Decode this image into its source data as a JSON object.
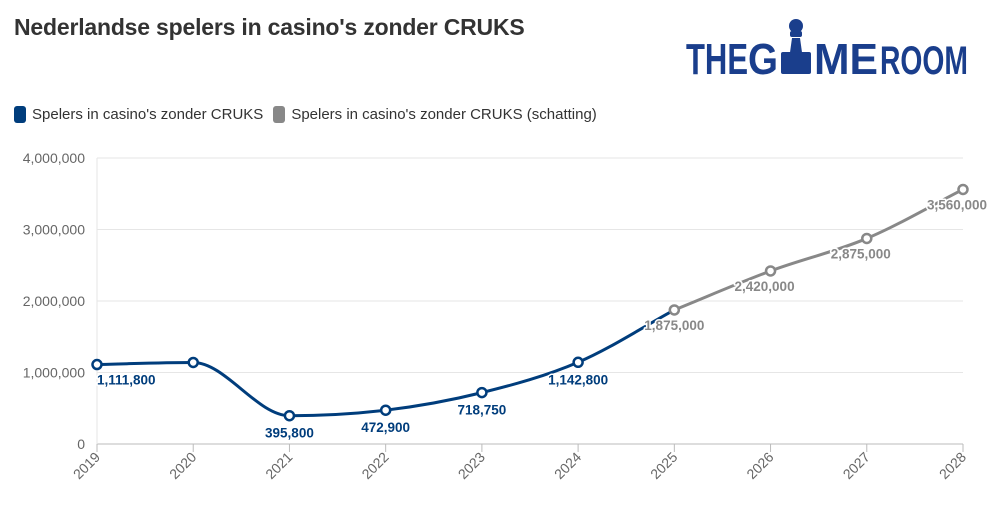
{
  "title": "Nederlandse spelers in casino's zonder CRUKS",
  "logo": {
    "part1": "THE",
    "part2": "G",
    "part3": "ME",
    "part4": "ROOM"
  },
  "colors": {
    "actual": "#003d7c",
    "estimate": "#888888",
    "grid": "#e6e6e6",
    "axis": "#bbbbbb"
  },
  "chart_data": {
    "type": "line",
    "title": "Nederlandse spelers in casino's zonder CRUKS",
    "x": [
      "2019",
      "2020",
      "2021",
      "2022",
      "2023",
      "2024",
      "2025",
      "2026",
      "2027",
      "2028"
    ],
    "ylim": [
      0,
      4000000
    ],
    "yticks": [
      0,
      1000000,
      2000000,
      3000000,
      4000000
    ],
    "ytick_labels": [
      "0",
      "1,000,000",
      "2,000,000",
      "3,000,000",
      "4,000,000"
    ],
    "grid": true,
    "legend_position": "top-left",
    "series": [
      {
        "name": "Spelers in casino's zonder CRUKS",
        "color": "#003d7c",
        "x": [
          "2019",
          "2020",
          "2021",
          "2022",
          "2023",
          "2024",
          "2025"
        ],
        "values": [
          1111800,
          1140000,
          395800,
          472900,
          718750,
          1142800,
          1875000
        ],
        "labels": [
          "1,111,800",
          null,
          "395,800",
          "472,900",
          "718,750",
          "1,142,800",
          null
        ],
        "markers": [
          true,
          true,
          true,
          true,
          true,
          true,
          false
        ]
      },
      {
        "name": "Spelers in casino's zonder CRUKS (schatting)",
        "color": "#888888",
        "x": [
          "2025",
          "2026",
          "2027",
          "2028"
        ],
        "values": [
          1875000,
          2420000,
          2875000,
          3560000
        ],
        "labels": [
          "1,875,000",
          "2,420,000",
          "2,875,000",
          "3,560,000"
        ],
        "markers": [
          true,
          true,
          true,
          true
        ]
      }
    ]
  }
}
